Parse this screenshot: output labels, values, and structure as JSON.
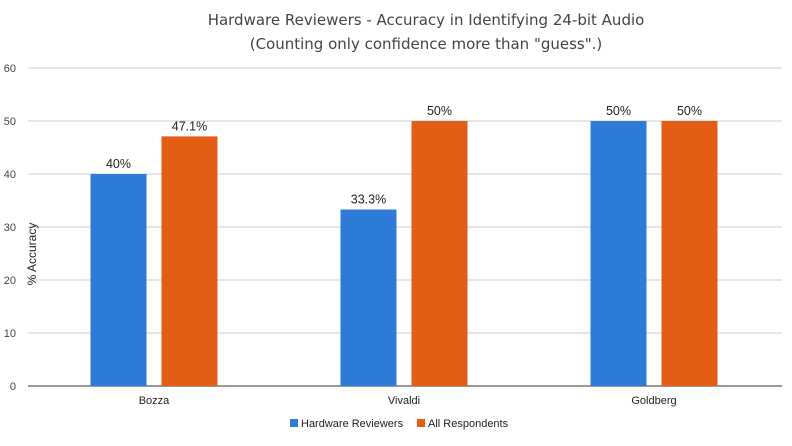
{
  "chart_data": {
    "type": "bar",
    "title": "Hardware Reviewers - Accuracy in Identifying 24-bit Audio",
    "subtitle": "(Counting only confidence more than \"guess\".)",
    "ylabel": "% Accuracy",
    "xlabel": "",
    "ylim": [
      0,
      60
    ],
    "yticks": [
      "0",
      "10",
      "20",
      "30",
      "40",
      "50",
      "60"
    ],
    "grid": true,
    "legend_position": "bottom",
    "categories": [
      "Bozza",
      "Vivaldi",
      "Goldberg"
    ],
    "series": [
      {
        "name": "Hardware Reviewers",
        "color": "#2e7bd8",
        "values": [
          40,
          33.3,
          50
        ],
        "labels": [
          "40%",
          "33.3%",
          "50%"
        ]
      },
      {
        "name": "All Respondents",
        "color": "#e35e14",
        "values": [
          47.1,
          50,
          50
        ],
        "labels": [
          "47.1%",
          "50%",
          "50%"
        ]
      }
    ]
  }
}
